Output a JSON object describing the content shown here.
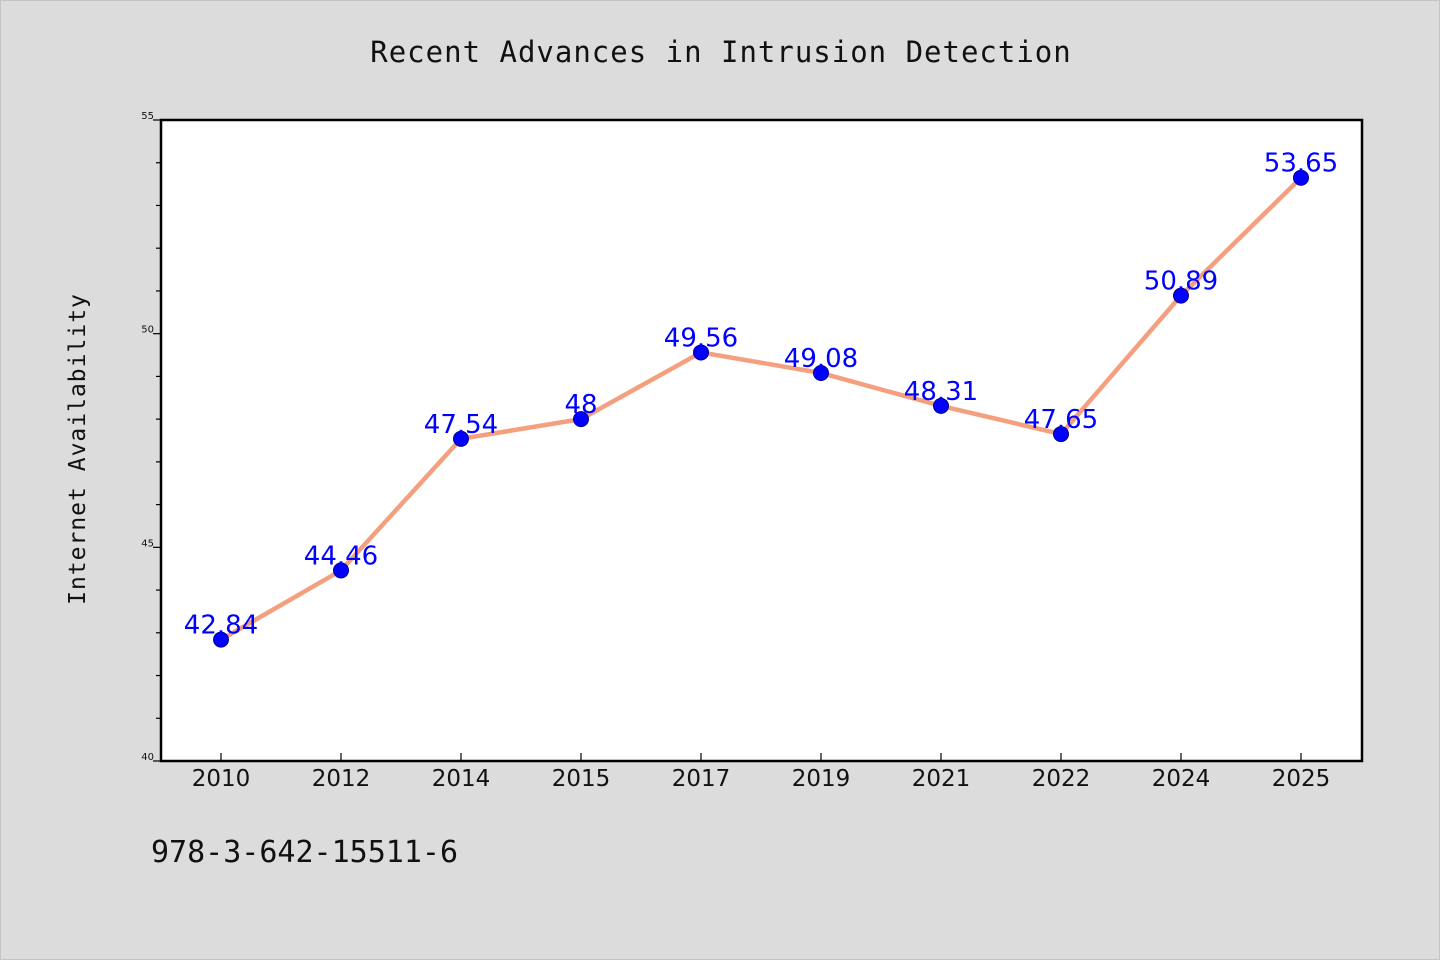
{
  "chart_data": {
    "type": "line",
    "title": "Recent Advances in Intrusion Detection",
    "xlabel": "",
    "ylabel": "Internet Availability",
    "categories": [
      "2010",
      "2012",
      "2014",
      "2015",
      "2017",
      "2019",
      "2021",
      "2022",
      "2024",
      "2025"
    ],
    "series": [
      {
        "values": [
          42.84,
          44.46,
          47.54,
          48,
          49.56,
          49.08,
          48.31,
          47.65,
          50.89,
          53.65
        ],
        "labels": [
          "42.84",
          "44.46",
          "47.54",
          "48",
          "49.56",
          "49.08",
          "48.31",
          "47.65",
          "50.89",
          "53.65"
        ]
      }
    ],
    "ylim": [
      40,
      55
    ],
    "yticks": [
      "40",
      "45",
      "50",
      "55"
    ],
    "grid": false,
    "legend": "none",
    "colors": {
      "line": "#f4a07f",
      "marker": "#0000ff",
      "data_label": "#0000ff",
      "background": "#dcdcdc",
      "plot_background": "#ffffff"
    }
  },
  "footer": {
    "isbn": "978-3-642-15511-6"
  }
}
